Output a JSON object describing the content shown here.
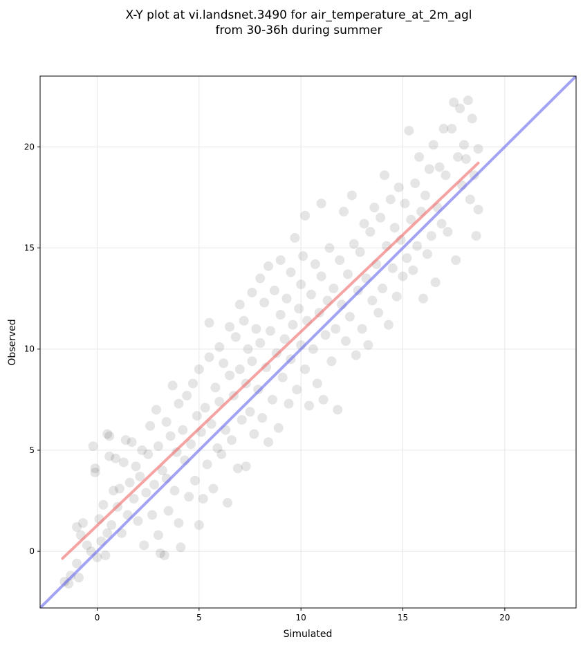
{
  "chart_data": {
    "type": "scatter",
    "title": "X-Y plot at vi.landsnet.3490 for air_temperature_at_2m_agl",
    "subtitle": "from 30-36h during summer",
    "xlabel": "Simulated",
    "ylabel": "Observed",
    "xlim": [
      -2.8,
      23.5
    ],
    "ylim": [
      -2.8,
      23.5
    ],
    "x_ticks": [
      0,
      5,
      10,
      15,
      20
    ],
    "y_ticks": [
      0,
      5,
      10,
      15,
      20
    ],
    "x_tick_labels": [
      "0",
      "5",
      "10",
      "15",
      "20"
    ],
    "y_tick_labels": [
      "0",
      "5",
      "10",
      "15",
      "20"
    ],
    "grid": true,
    "point_color": "#000000",
    "identity_line": {
      "x": [
        -2.8,
        23.5
      ],
      "y": [
        -2.8,
        23.5
      ],
      "color": "#6666ee"
    },
    "regression_line": {
      "x": [
        -1.7,
        18.7
      ],
      "y": [
        -0.35,
        19.2
      ],
      "color": "#ee6666"
    },
    "points": [
      [
        -1.6,
        -1.5
      ],
      [
        -1.3,
        -1.2
      ],
      [
        -1.4,
        -1.6
      ],
      [
        -1.0,
        -0.6
      ],
      [
        -0.9,
        -1.3
      ],
      [
        -0.8,
        0.8
      ],
      [
        -1.0,
        1.2
      ],
      [
        -0.7,
        1.4
      ],
      [
        -0.5,
        0.3
      ],
      [
        -0.3,
        0.0
      ],
      [
        -0.2,
        5.2
      ],
      [
        -0.1,
        3.9
      ],
      [
        -0.1,
        4.1
      ],
      [
        0.0,
        -0.3
      ],
      [
        0.1,
        1.6
      ],
      [
        0.2,
        0.5
      ],
      [
        0.3,
        2.3
      ],
      [
        0.4,
        -0.2
      ],
      [
        0.5,
        0.9
      ],
      [
        0.5,
        5.8
      ],
      [
        0.6,
        5.7
      ],
      [
        0.6,
        4.7
      ],
      [
        0.7,
        1.3
      ],
      [
        0.8,
        3.0
      ],
      [
        0.9,
        4.6
      ],
      [
        1.0,
        2.2
      ],
      [
        1.1,
        3.1
      ],
      [
        1.2,
        0.9
      ],
      [
        1.3,
        4.4
      ],
      [
        1.4,
        5.5
      ],
      [
        1.5,
        1.8
      ],
      [
        1.6,
        3.4
      ],
      [
        1.7,
        5.4
      ],
      [
        1.8,
        2.6
      ],
      [
        1.9,
        4.2
      ],
      [
        2.0,
        1.5
      ],
      [
        2.1,
        3.7
      ],
      [
        2.2,
        5.0
      ],
      [
        2.3,
        0.3
      ],
      [
        2.4,
        2.9
      ],
      [
        2.5,
        4.8
      ],
      [
        2.6,
        6.2
      ],
      [
        2.7,
        1.8
      ],
      [
        2.8,
        3.3
      ],
      [
        2.9,
        7.0
      ],
      [
        3.0,
        0.8
      ],
      [
        3.0,
        5.2
      ],
      [
        3.1,
        -0.1
      ],
      [
        3.2,
        4.0
      ],
      [
        3.3,
        -0.2
      ],
      [
        3.4,
        6.4
      ],
      [
        3.4,
        3.6
      ],
      [
        3.5,
        2.0
      ],
      [
        3.6,
        5.7
      ],
      [
        3.7,
        8.2
      ],
      [
        3.8,
        3.0
      ],
      [
        3.9,
        4.9
      ],
      [
        4.0,
        7.3
      ],
      [
        4.0,
        1.4
      ],
      [
        4.1,
        0.2
      ],
      [
        4.2,
        6.0
      ],
      [
        4.3,
        4.5
      ],
      [
        4.4,
        7.7
      ],
      [
        4.5,
        2.7
      ],
      [
        4.6,
        5.3
      ],
      [
        4.7,
        8.3
      ],
      [
        4.8,
        3.5
      ],
      [
        4.9,
        6.7
      ],
      [
        5.0,
        1.3
      ],
      [
        5.0,
        9.0
      ],
      [
        5.1,
        5.9
      ],
      [
        5.2,
        2.6
      ],
      [
        5.3,
        7.1
      ],
      [
        5.4,
        4.3
      ],
      [
        5.5,
        9.6
      ],
      [
        5.5,
        11.3
      ],
      [
        5.6,
        6.3
      ],
      [
        5.7,
        3.1
      ],
      [
        5.8,
        8.1
      ],
      [
        5.9,
        5.1
      ],
      [
        6.0,
        10.1
      ],
      [
        6.0,
        7.4
      ],
      [
        6.1,
        4.8
      ],
      [
        6.2,
        9.3
      ],
      [
        6.3,
        6.0
      ],
      [
        6.4,
        2.4
      ],
      [
        6.5,
        8.7
      ],
      [
        6.5,
        11.1
      ],
      [
        6.6,
        5.5
      ],
      [
        6.7,
        7.7
      ],
      [
        6.8,
        10.6
      ],
      [
        6.9,
        4.1
      ],
      [
        7.0,
        9.0
      ],
      [
        7.0,
        12.2
      ],
      [
        7.1,
        6.5
      ],
      [
        7.2,
        11.4
      ],
      [
        7.3,
        8.3
      ],
      [
        7.3,
        4.2
      ],
      [
        7.4,
        10.0
      ],
      [
        7.5,
        6.9
      ],
      [
        7.6,
        12.8
      ],
      [
        7.6,
        9.4
      ],
      [
        7.7,
        5.8
      ],
      [
        7.8,
        11.0
      ],
      [
        7.9,
        8.0
      ],
      [
        8.0,
        13.5
      ],
      [
        8.0,
        10.3
      ],
      [
        8.1,
        6.6
      ],
      [
        8.2,
        12.3
      ],
      [
        8.3,
        9.1
      ],
      [
        8.4,
        14.1
      ],
      [
        8.4,
        5.4
      ],
      [
        8.5,
        10.9
      ],
      [
        8.6,
        7.5
      ],
      [
        8.7,
        12.9
      ],
      [
        8.8,
        9.8
      ],
      [
        8.9,
        6.1
      ],
      [
        9.0,
        11.7
      ],
      [
        9.0,
        14.4
      ],
      [
        9.1,
        8.6
      ],
      [
        9.2,
        10.5
      ],
      [
        9.3,
        12.5
      ],
      [
        9.4,
        7.3
      ],
      [
        9.5,
        13.8
      ],
      [
        9.5,
        9.5
      ],
      [
        9.6,
        11.2
      ],
      [
        9.7,
        15.5
      ],
      [
        9.8,
        8.0
      ],
      [
        9.9,
        12.0
      ],
      [
        10.0,
        10.2
      ],
      [
        10.0,
        13.2
      ],
      [
        10.1,
        14.6
      ],
      [
        10.2,
        9.0
      ],
      [
        10.2,
        16.6
      ],
      [
        10.3,
        11.4
      ],
      [
        10.4,
        7.2
      ],
      [
        10.5,
        12.7
      ],
      [
        10.6,
        10.0
      ],
      [
        10.7,
        14.2
      ],
      [
        10.8,
        8.3
      ],
      [
        10.9,
        11.8
      ],
      [
        11.0,
        13.6
      ],
      [
        11.0,
        17.2
      ],
      [
        11.1,
        7.5
      ],
      [
        11.2,
        10.7
      ],
      [
        11.3,
        12.4
      ],
      [
        11.4,
        15.0
      ],
      [
        11.5,
        9.4
      ],
      [
        11.6,
        13.0
      ],
      [
        11.7,
        11.0
      ],
      [
        11.8,
        7.0
      ],
      [
        11.9,
        14.4
      ],
      [
        12.0,
        12.2
      ],
      [
        12.1,
        16.8
      ],
      [
        12.2,
        10.4
      ],
      [
        12.3,
        13.7
      ],
      [
        12.4,
        11.6
      ],
      [
        12.5,
        17.6
      ],
      [
        12.6,
        15.2
      ],
      [
        12.7,
        9.7
      ],
      [
        12.8,
        12.9
      ],
      [
        12.9,
        14.8
      ],
      [
        13.0,
        11.0
      ],
      [
        13.1,
        16.2
      ],
      [
        13.2,
        13.5
      ],
      [
        13.3,
        10.2
      ],
      [
        13.4,
        15.8
      ],
      [
        13.5,
        12.4
      ],
      [
        13.6,
        17.0
      ],
      [
        13.7,
        14.2
      ],
      [
        13.8,
        11.8
      ],
      [
        13.9,
        16.5
      ],
      [
        14.0,
        13.0
      ],
      [
        14.1,
        18.6
      ],
      [
        14.2,
        15.1
      ],
      [
        14.3,
        11.2
      ],
      [
        14.4,
        17.4
      ],
      [
        14.5,
        14.0
      ],
      [
        14.6,
        16.0
      ],
      [
        14.7,
        12.6
      ],
      [
        14.8,
        18.0
      ],
      [
        14.9,
        15.4
      ],
      [
        15.0,
        13.6
      ],
      [
        15.1,
        17.2
      ],
      [
        15.2,
        14.5
      ],
      [
        15.3,
        20.8
      ],
      [
        15.4,
        16.4
      ],
      [
        15.5,
        13.9
      ],
      [
        15.6,
        18.2
      ],
      [
        15.7,
        15.1
      ],
      [
        15.8,
        19.5
      ],
      [
        15.9,
        16.8
      ],
      [
        16.0,
        12.5
      ],
      [
        16.1,
        17.6
      ],
      [
        16.2,
        14.7
      ],
      [
        16.3,
        18.9
      ],
      [
        16.4,
        15.6
      ],
      [
        16.5,
        20.1
      ],
      [
        16.6,
        13.3
      ],
      [
        16.7,
        17.0
      ],
      [
        16.8,
        19.0
      ],
      [
        16.9,
        16.2
      ],
      [
        17.0,
        20.9
      ],
      [
        17.1,
        18.6
      ],
      [
        17.2,
        15.8
      ],
      [
        17.4,
        20.9
      ],
      [
        17.5,
        22.2
      ],
      [
        17.6,
        14.4
      ],
      [
        17.7,
        19.5
      ],
      [
        17.8,
        21.9
      ],
      [
        17.9,
        18.1
      ],
      [
        18.0,
        20.1
      ],
      [
        18.1,
        19.4
      ],
      [
        18.2,
        22.3
      ],
      [
        18.3,
        17.4
      ],
      [
        18.4,
        21.4
      ],
      [
        18.5,
        18.6
      ],
      [
        18.6,
        15.6
      ],
      [
        18.7,
        19.9
      ],
      [
        18.7,
        16.9
      ]
    ]
  }
}
